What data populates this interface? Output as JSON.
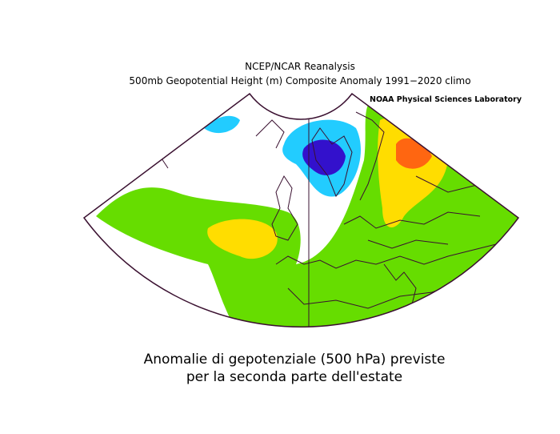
{
  "header": {
    "title": "NCEP/NCAR Reanalysis",
    "subtitle": "500mb Geopotential Height (m) Composite Anomaly 1991−2020 climo",
    "credit": "NOAA Physical Sciences Laboratory"
  },
  "caption": {
    "lines": [
      "Anomalie di gepotenziale (500 hPa) previste",
      "per la seconda parte dell'estate"
    ]
  }
}
